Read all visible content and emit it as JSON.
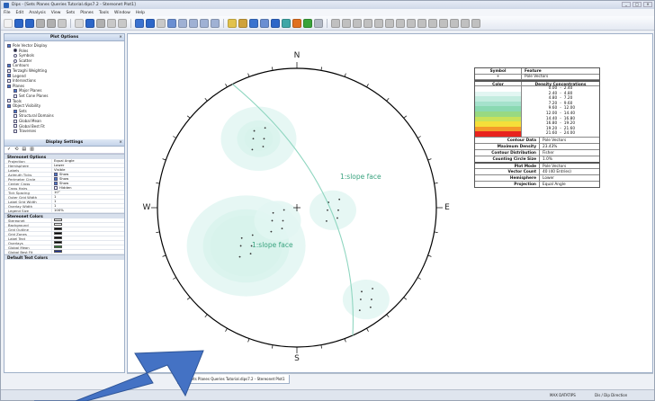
{
  "window": {
    "title": "Dips - [Sets Planes Queries Tutorial.dips7.2 - Stereonet Plot1]",
    "controls": [
      "_",
      "□",
      "×"
    ]
  },
  "menu": [
    "File",
    "Edit",
    "Analysis",
    "View",
    "Sets",
    "Planes",
    "Tools",
    "Window",
    "Help"
  ],
  "toolbar_colors": [
    "#f2f2f2",
    "#2c66c8",
    "#2c66c8",
    "#b0b0b0",
    "#b0b0b0",
    "#c8c8c8",
    "#d8d8d8",
    "#2c66c8",
    "#b0b0b0",
    "#c8c8c8",
    "#c8c8c8",
    "#3b72d0",
    "#2c66c8",
    "#c8c8c8",
    "#6a8fd2",
    "#9fb1d4",
    "#9fb1d4",
    "#9fb1d4",
    "#9fb1d4",
    "#e2c24c",
    "#cfa23a",
    "#3a73cf",
    "#6a8fd2",
    "#2c66c8",
    "#3fa7a7",
    "#e07020",
    "#39a339",
    "#b1b8c4",
    "#c0c0c0",
    "#c0c0c0",
    "#c0c0c0",
    "#c0c0c0",
    "#c0c0c0",
    "#c0c0c0",
    "#c0c0c0",
    "#c0c0c0",
    "#c0c0c0",
    "#c0c0c0",
    "#c0c0c0",
    "#c0c0c0",
    "#c0c0c0",
    "#c0c0c0"
  ],
  "plot_options": {
    "title": "Plot Options",
    "items": [
      {
        "indent": 0,
        "type": "ck",
        "on": true,
        "label": "Pole Vector Display"
      },
      {
        "indent": 1,
        "type": "rd",
        "on": true,
        "label": "Poles"
      },
      {
        "indent": 1,
        "type": "rd",
        "on": false,
        "label": "Symbols"
      },
      {
        "indent": 1,
        "type": "rd",
        "on": false,
        "label": "Scatter"
      },
      {
        "indent": 0,
        "type": "ck",
        "on": true,
        "label": "Contours"
      },
      {
        "indent": 0,
        "type": "ck",
        "on": false,
        "label": "Terzaghi Weighting"
      },
      {
        "indent": 0,
        "type": "ck",
        "on": true,
        "label": "Legend"
      },
      {
        "indent": 0,
        "type": "ck",
        "on": false,
        "label": "Intersections"
      },
      {
        "indent": 0,
        "type": "ck",
        "on": true,
        "label": "Planes"
      },
      {
        "indent": 1,
        "type": "ck",
        "on": true,
        "label": "Major Planes"
      },
      {
        "indent": 1,
        "type": "ck",
        "on": false,
        "label": "Set Cone Planes"
      },
      {
        "indent": 0,
        "type": "ck",
        "on": false,
        "label": "Tools"
      },
      {
        "indent": 0,
        "type": "ck",
        "on": true,
        "label": "Object Visibility"
      },
      {
        "indent": 1,
        "type": "ck",
        "on": true,
        "label": "Sets"
      },
      {
        "indent": 1,
        "type": "ck",
        "on": false,
        "label": "Structural Domains"
      },
      {
        "indent": 1,
        "type": "ck",
        "on": false,
        "label": "Global Mean"
      },
      {
        "indent": 1,
        "type": "ck",
        "on": false,
        "label": "Global Best Fit"
      },
      {
        "indent": 1,
        "type": "ck",
        "on": false,
        "label": "Traverses"
      }
    ]
  },
  "display_settings": {
    "title": "Display Settings",
    "tools": [
      "✓",
      "⟲",
      "▤",
      "▥"
    ],
    "sections": [
      {
        "name": "Stereonet Options",
        "rows": [
          {
            "k": "Projection",
            "v": "Equal Angle"
          },
          {
            "k": "Hemisphere",
            "v": "Lower"
          },
          {
            "k": "Labels",
            "v": "Visible"
          },
          {
            "k": "Azimuth Ticks",
            "v": "Show",
            "ck": true
          },
          {
            "k": "Perimeter Circle",
            "v": "Show",
            "ck": true
          },
          {
            "k": "Center Cross",
            "v": "Show",
            "ck": true
          },
          {
            "k": "Cross Hairs",
            "v": "Hidden",
            "ck": false
          },
          {
            "k": "Tick Spacing",
            "v": "10°"
          },
          {
            "k": "Outer Grid Width",
            "v": "1"
          },
          {
            "k": "Label Grid Width",
            "v": "1"
          },
          {
            "k": "Overlay Width",
            "v": "1"
          },
          {
            "k": "Legend Size",
            "v": "100%"
          }
        ]
      },
      {
        "name": "Stereonet Colors",
        "rows": [
          {
            "k": "Stereonet",
            "sw": "#ffffff"
          },
          {
            "k": "Background",
            "sw": "#ffffff"
          },
          {
            "k": "Grid Outline",
            "sw": "#000000"
          },
          {
            "k": "Grid Zones",
            "sw": "#000000"
          },
          {
            "k": "Label Text",
            "sw": "#000000"
          },
          {
            "k": "Overlays",
            "sw": "#000000"
          },
          {
            "k": "Global Mean",
            "sw": "#2e7d2e"
          },
          {
            "k": "Global Best Fit",
            "sw": "#1b2f9a"
          }
        ]
      },
      {
        "name": "Default Text Colors",
        "rows": []
      }
    ]
  },
  "stereonet": {
    "labels": {
      "N": "N",
      "S": "S",
      "E": "E",
      "W": "W"
    },
    "plane_labels": [
      "1:slope face",
      "1:slope face"
    ],
    "hotspots": [
      {
        "trend": 331,
        "plunge": 31,
        "peak": 3
      },
      {
        "trend": 233,
        "plunge": 41,
        "peak": 6
      },
      {
        "trend": 94,
        "plunge": 61,
        "peak": 1
      },
      {
        "trend": 143,
        "plunge": 11,
        "peak": 1
      },
      {
        "trend": 236,
        "plunge": 71,
        "peak": 1
      }
    ]
  },
  "legend": {
    "symbol_header": "Symbol",
    "feature_header": "Feature",
    "symbol": "+",
    "feature": "Pole Vectors",
    "color_header": "Color",
    "density_header": "Density Concentrations",
    "bands": [
      {
        "from": "0.00",
        "to": "2.40",
        "color": "#ffffff"
      },
      {
        "from": "2.40",
        "to": "4.80",
        "color": "#e2f6f2"
      },
      {
        "from": "4.80",
        "to": "7.20",
        "color": "#c3ecdf"
      },
      {
        "from": "7.20",
        "to": "9.60",
        "color": "#a5e2cc"
      },
      {
        "from": "9.60",
        "to": "12.00",
        "color": "#8ad9b2"
      },
      {
        "from": "12.00",
        "to": "14.40",
        "color": "#98d982"
      },
      {
        "from": "14.40",
        "to": "16.80",
        "color": "#c9e25a"
      },
      {
        "from": "16.80",
        "to": "19.20",
        "color": "#f5df3a"
      },
      {
        "from": "19.20",
        "to": "21.60",
        "color": "#f49a2a"
      },
      {
        "from": "21.60",
        "to": "24.00",
        "color": "#e8231e"
      }
    ],
    "stats": [
      {
        "k": "Contour Data",
        "v": "Pole Vectors"
      },
      {
        "k": "Maximum Density",
        "v": "23.43%"
      },
      {
        "k": "Contour Distribution",
        "v": "Fisher"
      },
      {
        "k": "Counting Circle Size",
        "v": "1.0%"
      }
    ],
    "info": [
      {
        "k": "Plot Mode",
        "v": "Pole Vectors"
      },
      {
        "k": "Vector Count",
        "v": "40 (40 Entries)"
      },
      {
        "k": "Hemisphere",
        "v": "Lower"
      },
      {
        "k": "Projection",
        "v": "Equal Angle"
      }
    ]
  },
  "tab": {
    "label": "Sets Planes Queries Tutorial.dips7.2 - Stereonet Plot1"
  },
  "status": {
    "left": "MAX DATATIPS",
    "right": "Dis / Dip Direction"
  },
  "colors": {
    "arrow": "#4472c4",
    "circle": "#000000"
  }
}
